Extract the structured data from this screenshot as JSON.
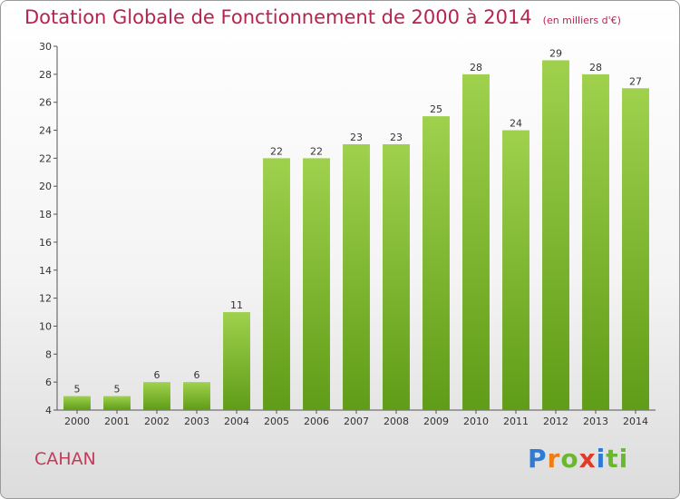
{
  "header": {
    "title": "Dotation Globale de Fonctionnement de 2000 à 2014",
    "subtitle": "(en milliers d'€)"
  },
  "commune": "CAHAN",
  "logo": {
    "text": "Proxiti"
  },
  "colors": {
    "bar_top": "#9fd14d",
    "bar_bottom": "#5f9c17",
    "title": "#b8234e"
  },
  "chart_data": {
    "type": "bar",
    "title": "Dotation Globale de Fonctionnement de 2000 à 2014",
    "subtitle": "(en milliers d'€)",
    "categories": [
      "2000",
      "2001",
      "2002",
      "2003",
      "2004",
      "2005",
      "2006",
      "2007",
      "2008",
      "2009",
      "2010",
      "2011",
      "2012",
      "2013",
      "2014"
    ],
    "values": [
      5,
      5,
      6,
      6,
      11,
      22,
      22,
      23,
      23,
      25,
      28,
      24,
      29,
      28,
      27
    ],
    "ylim": [
      4,
      30
    ],
    "yticks": [
      4,
      6,
      8,
      10,
      12,
      14,
      16,
      18,
      20,
      22,
      24,
      26,
      28,
      30
    ],
    "grid": false,
    "legend": "none"
  }
}
